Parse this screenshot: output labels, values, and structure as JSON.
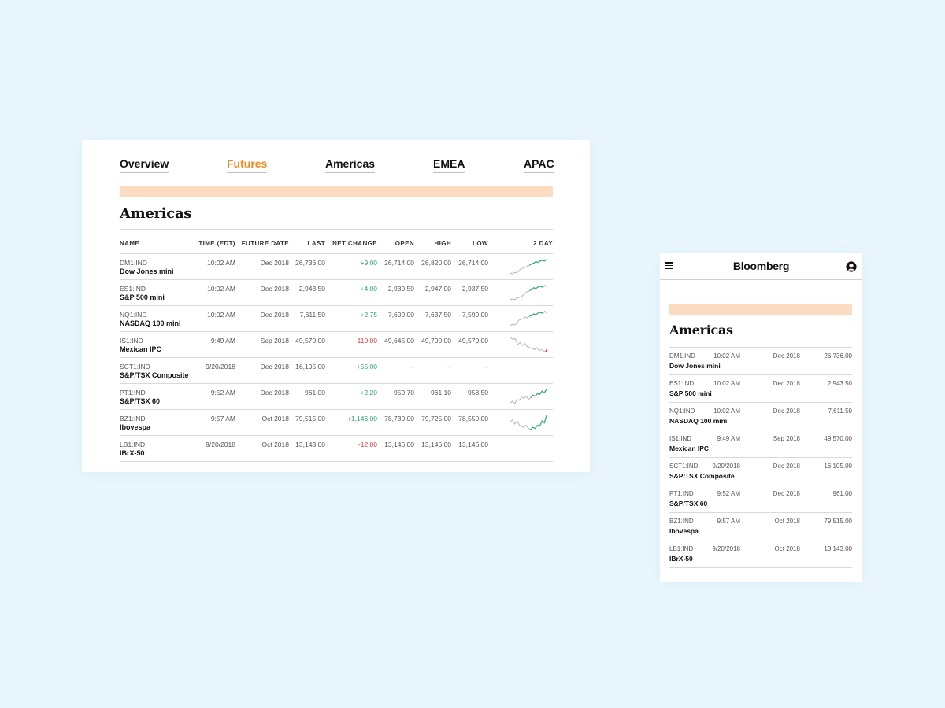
{
  "desktop": {
    "tabs": [
      {
        "label": "Overview",
        "active": false
      },
      {
        "label": "Futures",
        "active": true
      },
      {
        "label": "Americas",
        "active": false
      },
      {
        "label": "EMEA",
        "active": false
      },
      {
        "label": "APAC",
        "active": false
      }
    ],
    "title": "Americas",
    "columns": [
      "NAME",
      "TIME (EDT)",
      "FUTURE DATE",
      "LAST",
      "NET CHANGE",
      "OPEN",
      "HIGH",
      "LOW",
      "2 DAY"
    ],
    "rows": [
      {
        "ticker": "DM1:IND",
        "name": "Dow Jones mini",
        "time": "10:02 AM",
        "future_date": "Dec 2018",
        "last": "26,736.00",
        "net_change": "+9.00",
        "open": "26,714.00",
        "high": "26,820.00",
        "low": "26,714.00",
        "trend": "up",
        "spark": [
          3,
          2,
          4,
          3,
          6,
          9,
          10,
          11,
          13,
          14,
          16,
          17,
          19,
          18,
          20,
          21,
          20,
          22
        ]
      },
      {
        "ticker": "ES1:IND",
        "name": "S&P 500 mini",
        "time": "10:02 AM",
        "future_date": "Dec 2018",
        "last": "2,943.50",
        "net_change": "+4.00",
        "open": "2,939.50",
        "high": "2,947.00",
        "low": "2,937.50",
        "trend": "up",
        "spark": [
          2,
          3,
          2,
          4,
          5,
          6,
          8,
          11,
          13,
          14,
          16,
          18,
          17,
          19,
          20,
          19,
          21,
          20
        ]
      },
      {
        "ticker": "NQ1:IND",
        "name": "NASDAQ 100 mini",
        "time": "10:02 AM",
        "future_date": "Dec 2018",
        "last": "7,611.50",
        "net_change": "+2.75",
        "open": "7,609.00",
        "high": "7,637.50",
        "low": "7,599.00",
        "trend": "up",
        "spark": [
          2,
          4,
          3,
          5,
          9,
          10,
          11,
          13,
          12,
          14,
          15,
          17,
          16,
          18,
          19,
          18,
          20,
          19
        ]
      },
      {
        "ticker": "IS1:IND",
        "name": "Mexican IPC",
        "time": "9:49 AM",
        "future_date": "Sep 2018",
        "last": "49,570.00",
        "net_change": "-110.00",
        "open": "49,645.00",
        "high": "49,700.00",
        "low": "49,570.00",
        "trend": "down",
        "spark": [
          20,
          18,
          19,
          13,
          15,
          12,
          14,
          11,
          10,
          9,
          8,
          10,
          7,
          8,
          6,
          7
        ]
      },
      {
        "ticker": "SCT1:IND",
        "name": "S&P/TSX Composite",
        "time": "9/20/2018",
        "future_date": "Dec 2018",
        "last": "16,105.00",
        "net_change": "+55.00",
        "open": "--",
        "high": "--",
        "low": "--",
        "trend": "none",
        "spark": []
      },
      {
        "ticker": "PT1:IND",
        "name": "S&P/TSX 60",
        "time": "9:52 AM",
        "future_date": "Dec 2018",
        "last": "961.00",
        "net_change": "+2.20",
        "open": "959.70",
        "high": "961.10",
        "low": "958.50",
        "trend": "up",
        "spark": [
          4,
          6,
          3,
          8,
          7,
          11,
          9,
          12,
          8,
          10,
          13,
          12,
          15,
          14,
          18,
          16,
          20
        ]
      },
      {
        "ticker": "BZ1:IND",
        "name": "Ibovespa",
        "time": "9:57 AM",
        "future_date": "Oct 2018",
        "last": "79,515.00",
        "net_change": "+1,146.00",
        "open": "78,730.00",
        "high": "79,725.00",
        "low": "78,550.00",
        "trend": "up",
        "spark": [
          12,
          14,
          10,
          13,
          9,
          8,
          7,
          9,
          6,
          5,
          7,
          6,
          9,
          8,
          13,
          11,
          18
        ]
      },
      {
        "ticker": "LB1:IND",
        "name": "IBrX-50",
        "time": "9/20/2018",
        "future_date": "Oct 2018",
        "last": "13,143.00",
        "net_change": "-12.00",
        "open": "13,146.00",
        "high": "13,146.00",
        "low": "13,146.00",
        "trend": "none",
        "spark": []
      }
    ]
  },
  "mobile": {
    "brand": "Bloomberg",
    "title": "Americas",
    "rows": [
      {
        "ticker": "DM1:IND",
        "name": "Dow Jones mini",
        "time": "10:02 AM",
        "future_date": "Dec 2018",
        "last": "26,736.00"
      },
      {
        "ticker": "ES1:IND",
        "name": "S&P 500 mini",
        "time": "10:02 AM",
        "future_date": "Dec 2018",
        "last": "2,943.50"
      },
      {
        "ticker": "NQ1:IND",
        "name": "NASDAQ 100 mini",
        "time": "10:02 AM",
        "future_date": "Dec 2018",
        "last": "7,611.50"
      },
      {
        "ticker": "IS1:IND",
        "name": "Mexican IPC",
        "time": "9:49 AM",
        "future_date": "Sep 2018",
        "last": "49,570.00"
      },
      {
        "ticker": "SCT1:IND",
        "name": "S&P/TSX Composite",
        "time": "9/20/2018",
        "future_date": "Dec 2018",
        "last": "16,105.00"
      },
      {
        "ticker": "PT1:IND",
        "name": "S&P/TSX 60",
        "time": "9:52 AM",
        "future_date": "Dec 2018",
        "last": "961.00"
      },
      {
        "ticker": "BZ1:IND",
        "name": "Ibovespa",
        "time": "9:57 AM",
        "future_date": "Oct 2018",
        "last": "79,515.00"
      },
      {
        "ticker": "LB1:IND",
        "name": "IBrX-50",
        "time": "9/20/2018",
        "future_date": "Oct 2018",
        "last": "13,143.00"
      }
    ]
  },
  "colors": {
    "accent": "#f0891f",
    "band": "#fbdcc0",
    "positive": "#2aa86a",
    "negative": "#e0373c",
    "spark_gray": "#b5b5b5",
    "background": "#eaf6fd"
  },
  "icons": [
    "menu-icon",
    "user-icon"
  ]
}
